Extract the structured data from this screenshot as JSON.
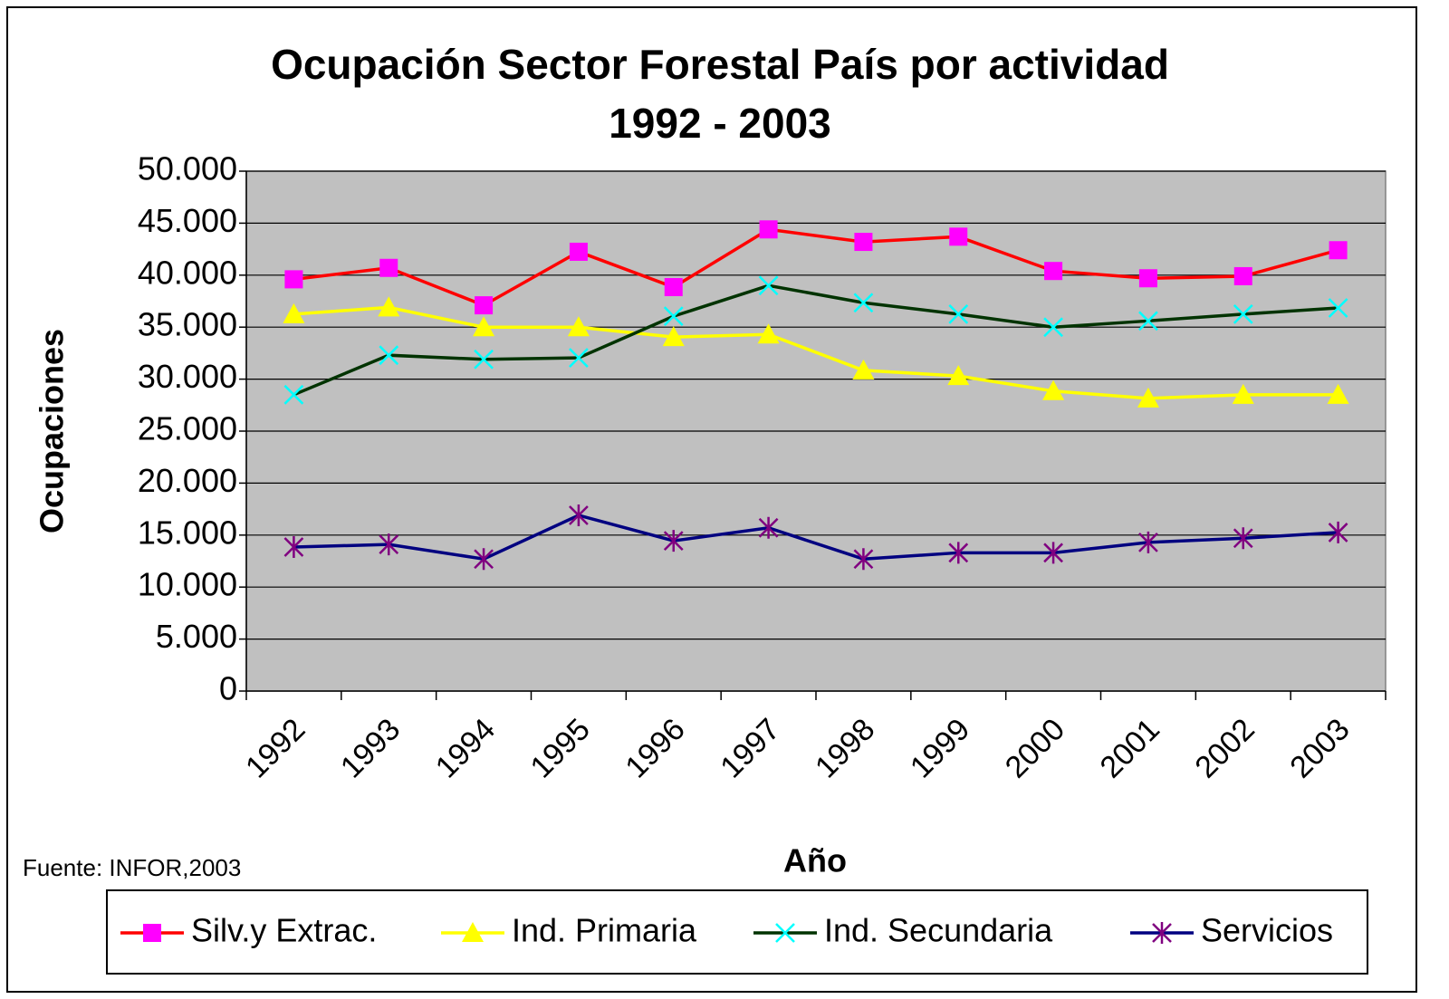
{
  "chart_data": {
    "type": "line",
    "title": "Ocupación Sector Forestal País por actividad",
    "subtitle": "1992 - 2003",
    "x_label": "Año",
    "y_label": "Ocupaciones",
    "source": "Fuente: INFOR,2003",
    "categories": [
      "1992",
      "1993",
      "1994",
      "1995",
      "1996",
      "1997",
      "1998",
      "1999",
      "2000",
      "2001",
      "2002",
      "2003"
    ],
    "series": [
      {
        "name": "Silv.y Extrac.",
        "color": "#FF0000",
        "marker": "square",
        "marker_color": "#FF00FF",
        "values": [
          39600,
          40700,
          37100,
          42250,
          38850,
          44400,
          43200,
          43700,
          40400,
          39700,
          39900,
          42400
        ]
      },
      {
        "name": "Ind. Primaria",
        "color": "#FFFF00",
        "marker": "triangle",
        "marker_color": "#FFFF00",
        "values": [
          36250,
          36900,
          35000,
          35000,
          34050,
          34300,
          30850,
          30300,
          28850,
          28150,
          28500,
          28500
        ]
      },
      {
        "name": "Ind. Secundaria",
        "color": "#003300",
        "marker": "x",
        "marker_color": "#00FFFF",
        "values": [
          28500,
          32300,
          31900,
          32050,
          36050,
          39000,
          37350,
          36250,
          35000,
          35600,
          36250,
          36850
        ]
      },
      {
        "name": "Servicios",
        "color": "#000080",
        "marker": "star",
        "marker_color": "#800080",
        "values": [
          13850,
          14100,
          12700,
          16900,
          14450,
          15700,
          12700,
          13300,
          13300,
          14300,
          14700,
          15250
        ]
      }
    ],
    "ylim": [
      0,
      50000
    ],
    "yticks": [
      0,
      {
        "value": 5000,
        "label": "5.000"
      },
      {
        "value": 10000,
        "label": "10.000"
      },
      {
        "value": 15000,
        "label": "15.000"
      },
      {
        "value": 20000,
        "label": "20.000"
      },
      {
        "value": 25000,
        "label": "25.000"
      },
      {
        "value": 30000,
        "label": "30.000"
      },
      {
        "value": 35000,
        "label": "35.000"
      },
      {
        "value": 40000,
        "label": "40.000"
      },
      {
        "value": 45000,
        "label": "45.000"
      },
      {
        "value": 50000,
        "label": "50.000"
      }
    ],
    "grid": true,
    "legend": "bottom"
  }
}
